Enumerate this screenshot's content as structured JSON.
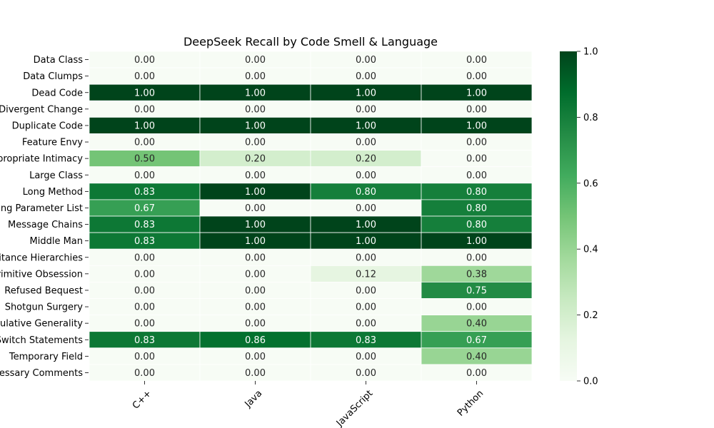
{
  "chart_data": {
    "type": "heatmap",
    "title": "DeepSeek Recall by Code Smell & Language",
    "xlabel": "",
    "ylabel": "",
    "columns": [
      "C++",
      "Java",
      "JavaScript",
      "Python"
    ],
    "rows": [
      "Data Class",
      "Data Clumps",
      "Dead Code",
      "Divergent Change",
      "Duplicate Code",
      "Feature Envy",
      "Inappropriate Intimacy",
      "Large Class",
      "Long Method",
      "Long Parameter List",
      "Message Chains",
      "Middle Man",
      "Parallel Inheritance Hierarchies",
      "Primitive Obsession",
      "Refused Bequest",
      "Shotgun Surgery",
      "Speculative Generality",
      "Switch Statements",
      "Temporary Field",
      "Unnecessary Comments"
    ],
    "values": [
      [
        0.0,
        0.0,
        0.0,
        0.0
      ],
      [
        0.0,
        0.0,
        0.0,
        0.0
      ],
      [
        1.0,
        1.0,
        1.0,
        1.0
      ],
      [
        0.0,
        0.0,
        0.0,
        0.0
      ],
      [
        1.0,
        1.0,
        1.0,
        1.0
      ],
      [
        0.0,
        0.0,
        0.0,
        0.0
      ],
      [
        0.5,
        0.2,
        0.2,
        0.0
      ],
      [
        0.0,
        0.0,
        0.0,
        0.0
      ],
      [
        0.83,
        1.0,
        0.8,
        0.8
      ],
      [
        0.67,
        0.0,
        0.0,
        0.8
      ],
      [
        0.83,
        1.0,
        1.0,
        0.8
      ],
      [
        0.83,
        1.0,
        1.0,
        1.0
      ],
      [
        0.0,
        0.0,
        0.0,
        0.0
      ],
      [
        0.0,
        0.0,
        0.12,
        0.38
      ],
      [
        0.0,
        0.0,
        0.0,
        0.75
      ],
      [
        0.0,
        0.0,
        0.0,
        0.0
      ],
      [
        0.0,
        0.0,
        0.0,
        0.4
      ],
      [
        0.83,
        0.86,
        0.83,
        0.67
      ],
      [
        0.0,
        0.0,
        0.0,
        0.4
      ],
      [
        0.0,
        0.0,
        0.0,
        0.0
      ]
    ],
    "value_format": "0.00",
    "colorbar": {
      "colormap": "Greens",
      "range": [
        0.0,
        1.0
      ],
      "ticks": [
        "0.0",
        "0.2",
        "0.4",
        "0.6",
        "0.8",
        "1.0"
      ]
    }
  }
}
